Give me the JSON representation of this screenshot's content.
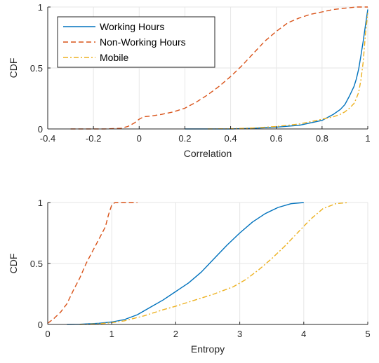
{
  "colors": {
    "working_hours": "#0072BD",
    "non_working_hours": "#D95319",
    "mobile": "#EDB120"
  },
  "chart_data": [
    {
      "type": "line",
      "subtype": "cdf",
      "xlabel": "Correlation",
      "ylabel": "CDF",
      "xlim": [
        -0.4,
        1
      ],
      "ylim": [
        0,
        1
      ],
      "xticks": [
        -0.4,
        -0.2,
        0,
        0.2,
        0.4,
        0.6,
        0.8,
        1
      ],
      "xtick_labels": [
        "-0.4",
        "-0.2",
        "0",
        "0.2",
        "0.4",
        "0.6",
        "0.8",
        "1"
      ],
      "yticks": [
        0,
        0.5,
        1
      ],
      "ytick_labels": [
        "0",
        "0.5",
        "1"
      ],
      "grid": true,
      "legend_position": "top-left",
      "series": [
        {
          "name": "Working Hours",
          "color": "#0072BD",
          "dash": "solid",
          "x": [
            0.2,
            0.4,
            0.5,
            0.6,
            0.7,
            0.75,
            0.8,
            0.85,
            0.88,
            0.9,
            0.92,
            0.94,
            0.95,
            0.96,
            0.97,
            0.98,
            0.99,
            1.0
          ],
          "y": [
            0.0,
            0.0,
            0.005,
            0.015,
            0.03,
            0.05,
            0.07,
            0.12,
            0.16,
            0.2,
            0.27,
            0.35,
            0.41,
            0.49,
            0.6,
            0.72,
            0.85,
            0.98
          ]
        },
        {
          "name": "Non-Working Hours",
          "color": "#D95319",
          "dash": "dashed",
          "x": [
            -0.3,
            -0.15,
            -0.08,
            -0.05,
            -0.02,
            0.0,
            0.02,
            0.05,
            0.1,
            0.15,
            0.2,
            0.25,
            0.3,
            0.35,
            0.4,
            0.45,
            0.5,
            0.55,
            0.6,
            0.65,
            0.7,
            0.75,
            0.8,
            0.85,
            0.9,
            0.95,
            1.0
          ],
          "y": [
            0.0,
            0.0,
            0.005,
            0.02,
            0.05,
            0.08,
            0.1,
            0.105,
            0.12,
            0.14,
            0.17,
            0.22,
            0.28,
            0.35,
            0.43,
            0.52,
            0.62,
            0.72,
            0.8,
            0.87,
            0.91,
            0.94,
            0.96,
            0.98,
            0.99,
            1.0,
            1.0
          ]
        },
        {
          "name": "Mobile",
          "color": "#EDB120",
          "dash": "dashdot",
          "x": [
            0.3,
            0.4,
            0.5,
            0.6,
            0.7,
            0.75,
            0.8,
            0.85,
            0.88,
            0.9,
            0.92,
            0.94,
            0.95,
            0.96,
            0.97,
            0.98,
            0.99,
            1.0
          ],
          "y": [
            0.0,
            0.002,
            0.008,
            0.02,
            0.04,
            0.06,
            0.08,
            0.1,
            0.12,
            0.14,
            0.17,
            0.21,
            0.25,
            0.3,
            0.4,
            0.55,
            0.78,
            0.95
          ]
        }
      ]
    },
    {
      "type": "line",
      "subtype": "cdf",
      "xlabel": "Entropy",
      "ylabel": "CDF",
      "xlim": [
        0,
        5
      ],
      "ylim": [
        0,
        1
      ],
      "xticks": [
        0,
        1,
        2,
        3,
        4,
        5
      ],
      "xtick_labels": [
        "0",
        "1",
        "2",
        "3",
        "4",
        "5"
      ],
      "yticks": [
        0,
        0.5,
        1
      ],
      "ytick_labels": [
        "0",
        "0.5",
        "1"
      ],
      "grid": true,
      "series": [
        {
          "name": "Working Hours",
          "color": "#0072BD",
          "dash": "solid",
          "x": [
            0.3,
            0.5,
            0.8,
            1.0,
            1.2,
            1.4,
            1.6,
            1.8,
            2.0,
            2.2,
            2.4,
            2.6,
            2.8,
            3.0,
            3.2,
            3.4,
            3.6,
            3.8,
            4.0
          ],
          "y": [
            0.0,
            0.002,
            0.01,
            0.02,
            0.04,
            0.08,
            0.14,
            0.2,
            0.27,
            0.34,
            0.43,
            0.54,
            0.65,
            0.75,
            0.84,
            0.91,
            0.96,
            0.99,
            1.0
          ]
        },
        {
          "name": "Non-Working Hours",
          "color": "#D95319",
          "dash": "dashed",
          "x": [
            0.0,
            0.1,
            0.2,
            0.3,
            0.4,
            0.5,
            0.6,
            0.7,
            0.8,
            0.9,
            0.95,
            1.0,
            1.05,
            1.2,
            1.4
          ],
          "y": [
            0.01,
            0.05,
            0.1,
            0.17,
            0.28,
            0.38,
            0.5,
            0.6,
            0.7,
            0.8,
            0.9,
            0.98,
            1.0,
            1.0,
            1.0
          ]
        },
        {
          "name": "Mobile",
          "color": "#EDB120",
          "dash": "dashdot",
          "x": [
            0.5,
            0.8,
            1.0,
            1.2,
            1.5,
            1.8,
            2.0,
            2.3,
            2.6,
            2.9,
            3.1,
            3.3,
            3.5,
            3.7,
            3.9,
            4.1,
            4.3,
            4.5,
            4.7
          ],
          "y": [
            0.0,
            0.005,
            0.015,
            0.03,
            0.07,
            0.12,
            0.15,
            0.2,
            0.25,
            0.31,
            0.37,
            0.45,
            0.54,
            0.64,
            0.75,
            0.86,
            0.95,
            0.99,
            1.0
          ]
        }
      ]
    }
  ]
}
